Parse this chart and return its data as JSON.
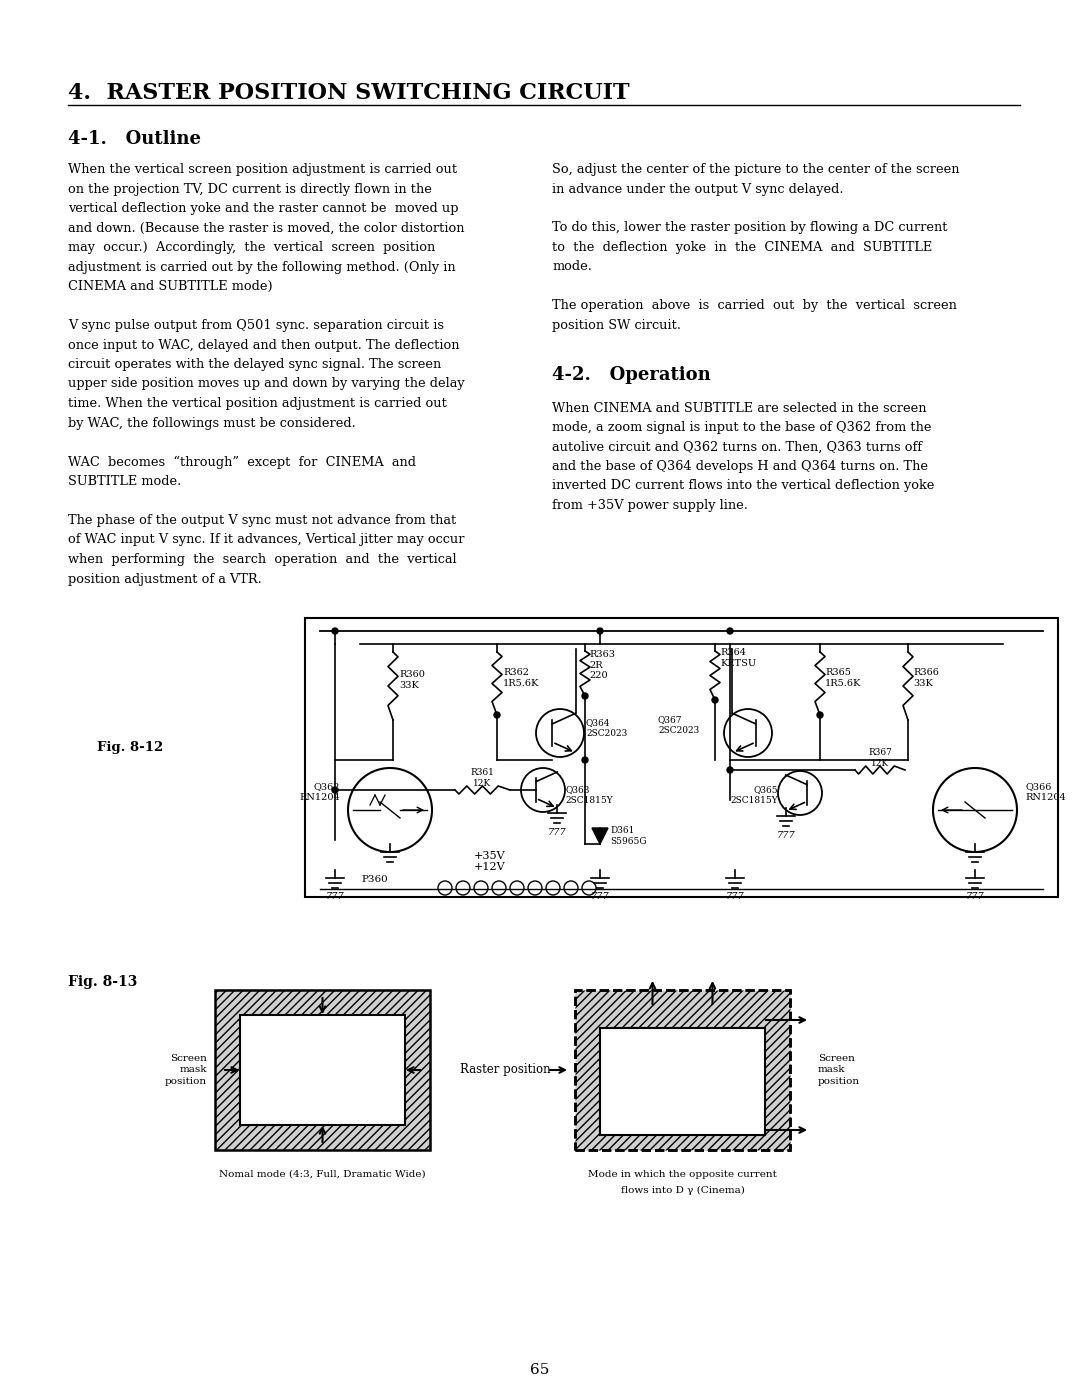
{
  "title": "4.  RASTER POSITION SWITCHING CIRCUIT",
  "section1_title": "4-1.   Outline",
  "section2_title": "4-2.   Operation",
  "fig12_label": "Fig. 8-12",
  "fig13_label": "Fig. 8-13",
  "page_number": "65",
  "background_color": "#ffffff",
  "text_color": "#000000",
  "col1_lines": [
    "When the vertical screen position adjustment is carried out",
    "on the projection TV, DC current is directly flown in the",
    "vertical deflection yoke and the raster cannot be  moved up",
    "and down. (Because the raster is moved, the color distortion",
    "may  occur.)  Accordingly,  the  vertical  screen  position",
    "adjustment is carried out by the following method. (Only in",
    "CINEMA and SUBTITLE mode)",
    "",
    "V sync pulse output from Q501 sync. separation circuit is",
    "once input to WAC, delayed and then output. The deflection",
    "circuit operates with the delayed sync signal. The screen",
    "upper side position moves up and down by varying the delay",
    "time. When the vertical position adjustment is carried out",
    "by WAC, the followings must be considered.",
    "",
    "WAC  becomes  “through”  except  for  CINEMA  and",
    "SUBTITLE mode.",
    "",
    "The phase of the output V sync must not advance from that",
    "of WAC input V sync. If it advances, Vertical jitter may occur",
    "when  performing  the  search  operation  and  the  vertical",
    "position adjustment of a VTR."
  ],
  "col2_lines": [
    "So, adjust the center of the picture to the center of the screen",
    "in advance under the output V sync delayed.",
    "",
    "To do this, lower the raster position by flowing a DC current",
    "to  the  deflection  yoke  in  the  CINEMA  and  SUBTITLE",
    "mode.",
    "",
    "The operation  above  is  carried  out  by  the  vertical  screen",
    "position SW circuit."
  ],
  "col2_op_lines": [
    "When CINEMA and SUBTITLE are selected in the screen",
    "mode, a zoom signal is input to the base of Q362 from the",
    "autolive circuit and Q362 turns on. Then, Q363 turns off",
    "and the base of Q364 develops H and Q364 turns on. The",
    "inverted DC current flows into the vertical deflection yoke",
    "from +35V power supply line."
  ],
  "fig13_center_label": "Raster position",
  "fig13_bottom_left": "Nomal mode (4:3, Full, Dramatic Wide)",
  "fig13_bottom_right": "Mode in which the opposite current",
  "fig13_bottom_right2": "flows into D γ (Cinema)"
}
